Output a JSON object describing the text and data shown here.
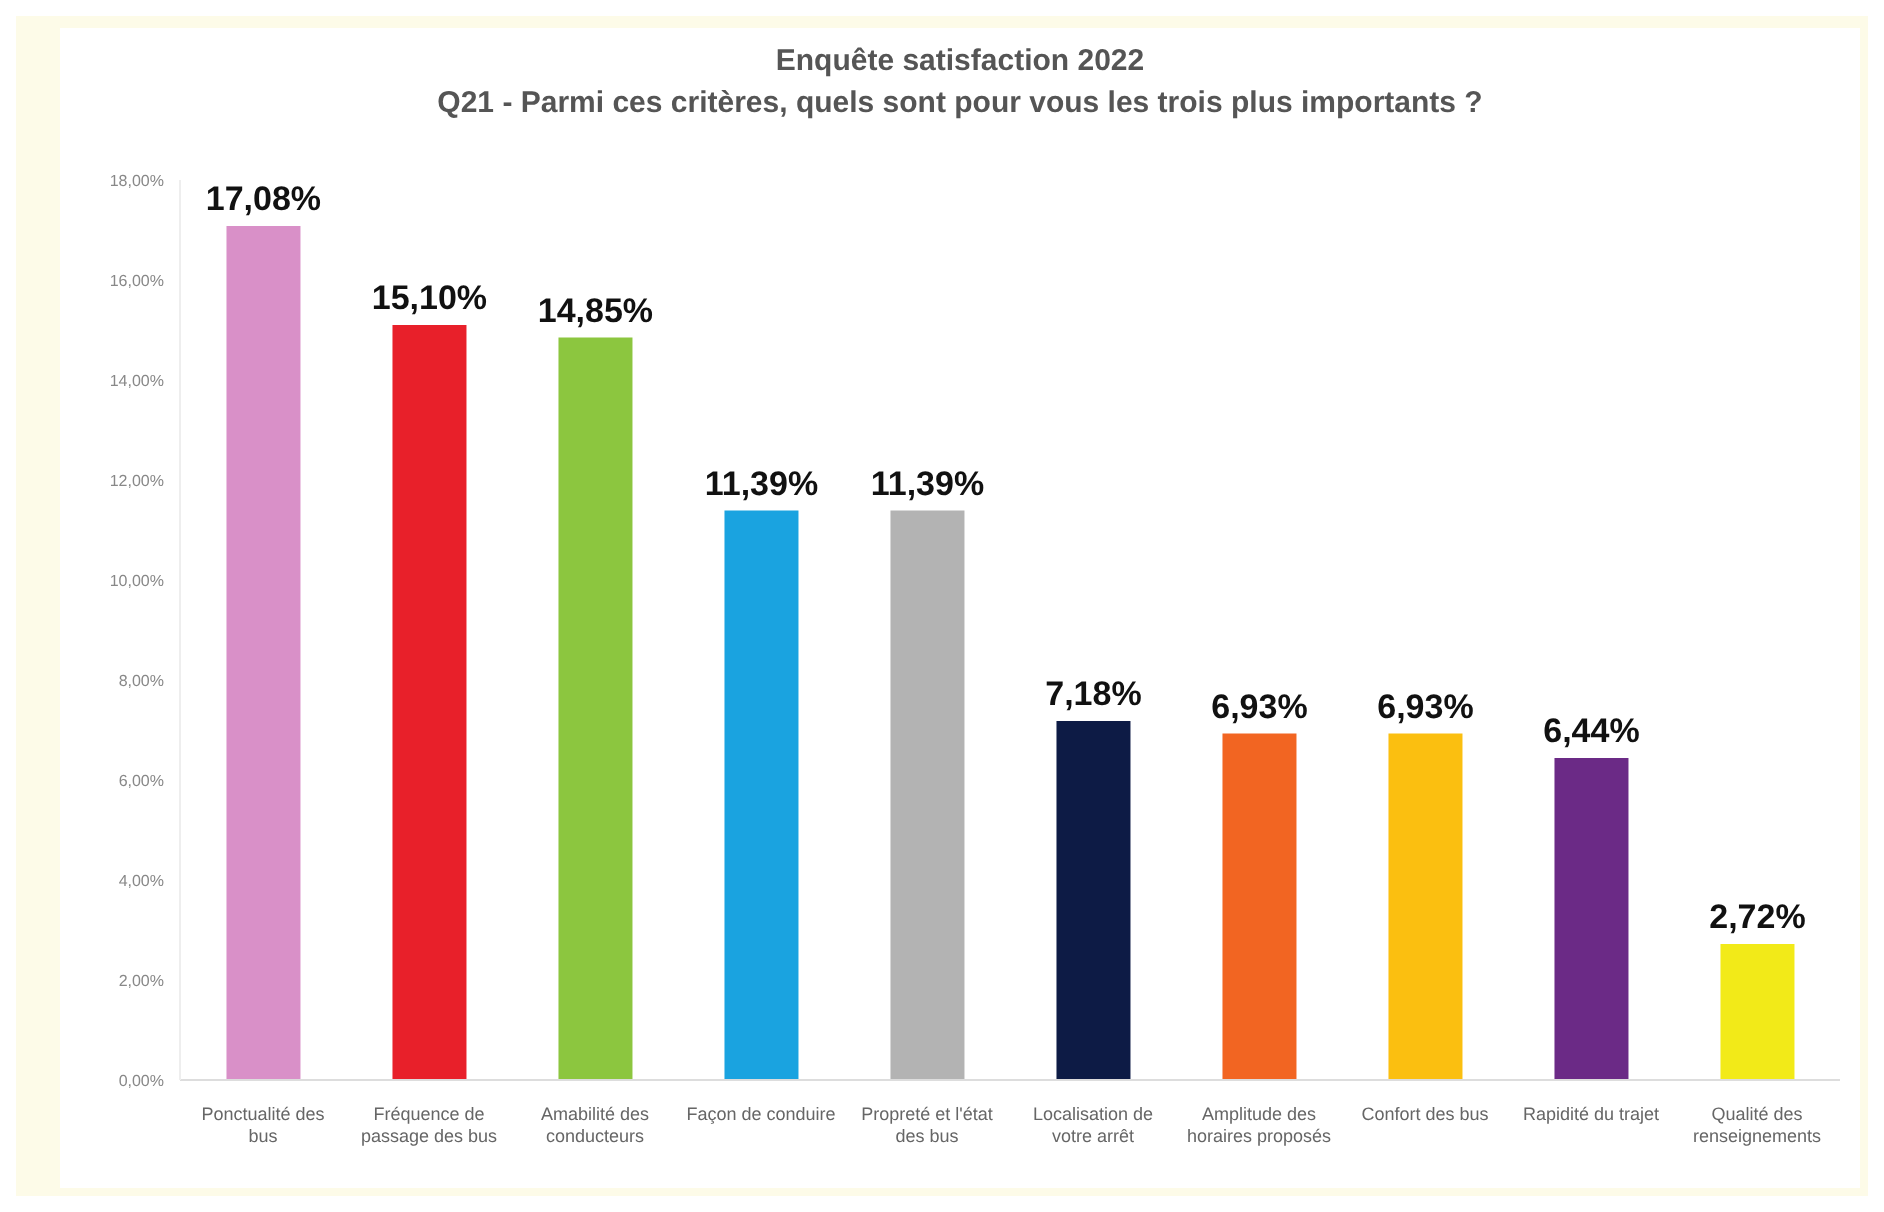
{
  "chart_data": {
    "type": "bar",
    "title": "Enquête satisfaction 2022",
    "subtitle": "Q21 - Parmi ces critères, quels sont pour vous les trois plus importants ?",
    "categories": [
      "Ponctualité des bus",
      "Fréquence de passage des bus",
      "Amabilité des conducteurs",
      "Façon de conduire",
      "Propreté et l'état des bus",
      "Localisation de votre arrêt",
      "Amplitude des horaires proposés",
      "Confort des bus",
      "Rapidité du trajet",
      "Qualité des renseignements"
    ],
    "values": [
      17.08,
      15.1,
      14.85,
      11.39,
      11.39,
      7.18,
      6.93,
      6.93,
      6.44,
      2.72
    ],
    "value_labels": [
      "17,08%",
      "15,10%",
      "14,85%",
      "11,39%",
      "11,39%",
      "7,18%",
      "6,93%",
      "6,93%",
      "6,44%",
      "2,72%"
    ],
    "colors": [
      "#d990c8",
      "#e8202a",
      "#8cc63f",
      "#1aa3e0",
      "#b3b3b3",
      "#0d1b45",
      "#f26522",
      "#fbbf10",
      "#6b2a86",
      "#f2ea18"
    ],
    "ylim": [
      0,
      18
    ],
    "yticks": [
      {
        "value": 0,
        "label": "0,00%"
      },
      {
        "value": 2,
        "label": "2,00%"
      },
      {
        "value": 4,
        "label": "4,00%"
      },
      {
        "value": 6,
        "label": "6,00%"
      },
      {
        "value": 8,
        "label": "8,00%"
      },
      {
        "value": 10,
        "label": "10,00%"
      },
      {
        "value": 12,
        "label": "12,00%"
      },
      {
        "value": 14,
        "label": "14,00%"
      },
      {
        "value": 16,
        "label": "16,00%"
      },
      {
        "value": 18,
        "label": "18,00%"
      }
    ],
    "grid": false,
    "legend": false
  }
}
